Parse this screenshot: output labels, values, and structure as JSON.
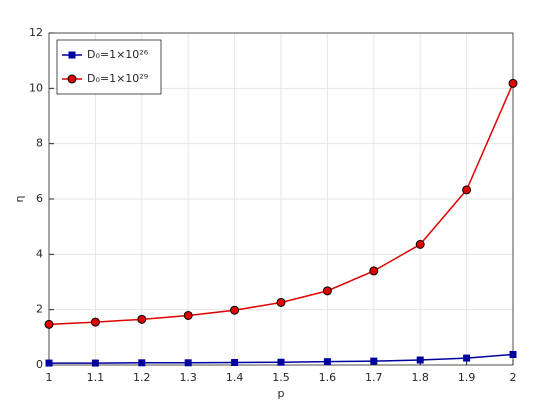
{
  "chart_data": {
    "type": "line",
    "x_label": "p",
    "y_label": "η",
    "x": [
      1,
      1.1,
      1.2,
      1.3,
      1.4,
      1.5,
      1.6,
      1.7,
      1.8,
      1.9,
      2
    ],
    "series": [
      {
        "name": "D₀=1×10²⁶",
        "color": "#0000a0",
        "marker": "square",
        "values": [
          0.07,
          0.07,
          0.08,
          0.08,
          0.09,
          0.1,
          0.12,
          0.14,
          0.18,
          0.25,
          0.38
        ]
      },
      {
        "name": "D₀=1×10²⁹",
        "color": "#e00000",
        "marker": "circle",
        "values": [
          1.47,
          1.55,
          1.65,
          1.79,
          1.98,
          2.26,
          2.68,
          3.4,
          4.36,
          6.33,
          10.18
        ]
      }
    ],
    "xlim": [
      1,
      2
    ],
    "xticks": [
      1,
      1.1,
      1.2,
      1.3,
      1.4,
      1.5,
      1.6,
      1.7,
      1.8,
      1.9,
      2
    ],
    "ylim": [
      0,
      12
    ],
    "yticks": [
      0,
      2,
      4,
      6,
      8,
      10,
      12
    ],
    "grid": true,
    "legend": "upper-left"
  }
}
